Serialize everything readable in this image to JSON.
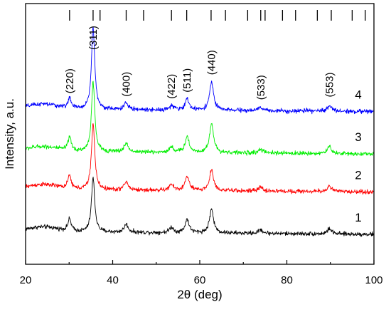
{
  "chart_data": {
    "type": "line",
    "xlabel": "2θ (deg)",
    "ylabel": "Intensity, a.u.",
    "xlim": [
      20,
      100
    ],
    "x_ticks": [
      20,
      40,
      60,
      80,
      100
    ],
    "y_ticks_shown": false,
    "grid": false,
    "legend": "none",
    "reference_lines": [
      30.1,
      35.5,
      37.1,
      43.1,
      47.1,
      53.5,
      57.0,
      62.6,
      65.9,
      71.0,
      74.0,
      75.0,
      79.0,
      82.0,
      87.0,
      90.2,
      95.0,
      98.0
    ],
    "peak_labels": [
      {
        "text": "(220)",
        "x": 30.1
      },
      {
        "text": "(311)",
        "x": 35.5
      },
      {
        "text": "(400)",
        "x": 43.1
      },
      {
        "text": "(422)",
        "x": 53.5
      },
      {
        "text": "(511)",
        "x": 57.1
      },
      {
        "text": "(440)",
        "x": 62.7
      },
      {
        "text": "(533)",
        "x": 74.0
      },
      {
        "text": "(553)",
        "x": 89.8
      }
    ],
    "series": [
      {
        "label": "1",
        "color": "#000000",
        "baseline": 3.0,
        "noise": 0.12,
        "peaks": [
          [
            30.1,
            1.1
          ],
          [
            35.5,
            5.0
          ],
          [
            43.1,
            0.75
          ],
          [
            53.5,
            0.5
          ],
          [
            57.1,
            1.25
          ],
          [
            62.7,
            2.2
          ],
          [
            74.0,
            0.35
          ],
          [
            89.8,
            0.5
          ]
        ]
      },
      {
        "label": "2",
        "color": "#ff0000",
        "baseline": 6.9,
        "noise": 0.12,
        "peaks": [
          [
            30.1,
            1.2
          ],
          [
            35.5,
            6.1
          ],
          [
            43.1,
            0.75
          ],
          [
            53.5,
            0.55
          ],
          [
            57.1,
            1.3
          ],
          [
            62.7,
            1.9
          ],
          [
            74.0,
            0.35
          ],
          [
            89.8,
            0.55
          ]
        ]
      },
      {
        "label": "3",
        "color": "#00ee00",
        "baseline": 10.4,
        "noise": 0.12,
        "peaks": [
          [
            30.1,
            1.2
          ],
          [
            35.5,
            6.4
          ],
          [
            43.1,
            0.8
          ],
          [
            53.5,
            0.5
          ],
          [
            57.1,
            1.45
          ],
          [
            62.7,
            2.7
          ],
          [
            74.0,
            0.35
          ],
          [
            89.8,
            0.65
          ]
        ]
      },
      {
        "label": "4",
        "color": "#0000ff",
        "baseline": 14.3,
        "noise": 0.12,
        "peaks": [
          [
            30.1,
            0.9
          ],
          [
            35.5,
            7.6
          ],
          [
            43.1,
            0.6
          ],
          [
            53.5,
            0.4
          ],
          [
            57.1,
            1.0
          ],
          [
            62.7,
            2.6
          ],
          [
            74.0,
            0.3
          ],
          [
            89.8,
            0.55
          ]
        ]
      }
    ]
  }
}
